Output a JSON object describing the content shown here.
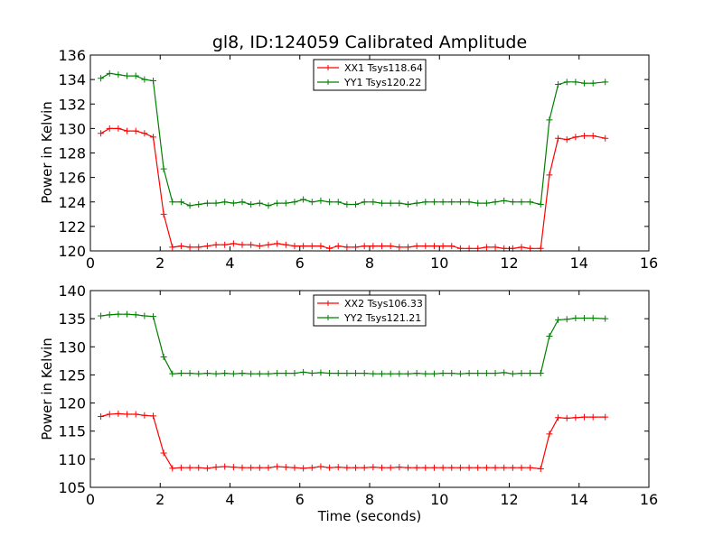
{
  "chart_data": [
    {
      "type": "line",
      "title": "gl8, ID:124059 Calibrated Amplitude",
      "xlabel": "",
      "ylabel": "Power in Kelvin",
      "xlim": [
        0,
        16
      ],
      "ylim": [
        120,
        136
      ],
      "xticks": [
        0,
        2,
        4,
        6,
        8,
        10,
        12,
        14,
        16
      ],
      "yticks": [
        120,
        122,
        124,
        126,
        128,
        130,
        132,
        134,
        136
      ],
      "grid": false,
      "legend_position": "top-center",
      "x": [
        0.3,
        0.55,
        0.8,
        1.05,
        1.3,
        1.55,
        1.8,
        2.1,
        2.35,
        2.6,
        2.85,
        3.1,
        3.35,
        3.6,
        3.85,
        4.1,
        4.35,
        4.6,
        4.85,
        5.1,
        5.35,
        5.6,
        5.85,
        6.1,
        6.35,
        6.6,
        6.85,
        7.1,
        7.35,
        7.6,
        7.85,
        8.1,
        8.35,
        8.6,
        8.85,
        9.1,
        9.35,
        9.6,
        9.85,
        10.1,
        10.35,
        10.6,
        10.85,
        11.1,
        11.35,
        11.6,
        11.85,
        12.1,
        12.35,
        12.6,
        12.9,
        13.15,
        13.4,
        13.65,
        13.9,
        14.15,
        14.4,
        14.75
      ],
      "series": [
        {
          "name": "YY1 Tsys120.22",
          "color": "#008000",
          "values": [
            134.1,
            134.5,
            134.4,
            134.3,
            134.3,
            134.0,
            133.9,
            126.7,
            124.0,
            124.0,
            123.7,
            123.8,
            123.9,
            123.9,
            124.0,
            123.9,
            124.0,
            123.8,
            123.9,
            123.7,
            123.9,
            123.9,
            124.0,
            124.2,
            124.0,
            124.1,
            124.0,
            124.0,
            123.8,
            123.8,
            124.0,
            124.0,
            123.9,
            123.9,
            123.9,
            123.8,
            123.9,
            124.0,
            124.0,
            124.0,
            124.0,
            124.0,
            124.0,
            123.9,
            123.9,
            124.0,
            124.1,
            124.0,
            124.0,
            124.0,
            123.8,
            130.7,
            133.6,
            133.8,
            133.8,
            133.7,
            133.7,
            133.8
          ]
        },
        {
          "name": "XX1 Tsys118.64",
          "color": "#ff0000",
          "values": [
            129.6,
            130.0,
            130.0,
            129.8,
            129.8,
            129.6,
            129.3,
            123.0,
            120.3,
            120.4,
            120.3,
            120.3,
            120.4,
            120.5,
            120.5,
            120.6,
            120.5,
            120.5,
            120.4,
            120.5,
            120.6,
            120.5,
            120.4,
            120.4,
            120.4,
            120.4,
            120.2,
            120.4,
            120.3,
            120.3,
            120.4,
            120.4,
            120.4,
            120.4,
            120.3,
            120.3,
            120.4,
            120.4,
            120.4,
            120.4,
            120.4,
            120.2,
            120.2,
            120.2,
            120.3,
            120.3,
            120.2,
            120.2,
            120.3,
            120.2,
            120.2,
            126.2,
            129.2,
            129.1,
            129.3,
            129.4,
            129.4,
            129.2
          ]
        }
      ]
    },
    {
      "type": "line",
      "title": "",
      "xlabel": "Time (seconds)",
      "ylabel": "Power in Kelvin",
      "xlim": [
        0,
        16
      ],
      "ylim": [
        105,
        140
      ],
      "xticks": [
        0,
        2,
        4,
        6,
        8,
        10,
        12,
        14,
        16
      ],
      "yticks": [
        105,
        110,
        115,
        120,
        125,
        130,
        135,
        140
      ],
      "grid": false,
      "legend_position": "top-center",
      "x": [
        0.3,
        0.55,
        0.8,
        1.05,
        1.3,
        1.55,
        1.8,
        2.1,
        2.35,
        2.6,
        2.85,
        3.1,
        3.35,
        3.6,
        3.85,
        4.1,
        4.35,
        4.6,
        4.85,
        5.1,
        5.35,
        5.6,
        5.85,
        6.1,
        6.35,
        6.6,
        6.85,
        7.1,
        7.35,
        7.6,
        7.85,
        8.1,
        8.35,
        8.6,
        8.85,
        9.1,
        9.35,
        9.6,
        9.85,
        10.1,
        10.35,
        10.6,
        10.85,
        11.1,
        11.35,
        11.6,
        11.85,
        12.1,
        12.35,
        12.6,
        12.9,
        13.15,
        13.4,
        13.65,
        13.9,
        14.15,
        14.4,
        14.75
      ],
      "series": [
        {
          "name": "YY2 Tsys121.21",
          "color": "#008000",
          "values": [
            135.5,
            135.7,
            135.8,
            135.8,
            135.7,
            135.5,
            135.4,
            128.2,
            125.2,
            125.3,
            125.3,
            125.2,
            125.3,
            125.2,
            125.3,
            125.2,
            125.3,
            125.2,
            125.2,
            125.2,
            125.3,
            125.3,
            125.3,
            125.5,
            125.3,
            125.4,
            125.3,
            125.3,
            125.3,
            125.3,
            125.3,
            125.2,
            125.2,
            125.2,
            125.2,
            125.2,
            125.3,
            125.2,
            125.2,
            125.3,
            125.3,
            125.2,
            125.3,
            125.3,
            125.3,
            125.3,
            125.4,
            125.2,
            125.3,
            125.3,
            125.3,
            131.9,
            134.8,
            134.9,
            135.1,
            135.1,
            135.1,
            135.0
          ]
        },
        {
          "name": "XX2 Tsys106.33",
          "color": "#ff0000",
          "values": [
            117.6,
            118.0,
            118.1,
            118.0,
            118.0,
            117.8,
            117.7,
            111.1,
            108.4,
            108.5,
            108.5,
            108.5,
            108.4,
            108.6,
            108.7,
            108.6,
            108.5,
            108.5,
            108.5,
            108.5,
            108.7,
            108.6,
            108.5,
            108.4,
            108.5,
            108.7,
            108.5,
            108.6,
            108.5,
            108.5,
            108.5,
            108.6,
            108.5,
            108.5,
            108.6,
            108.5,
            108.5,
            108.5,
            108.5,
            108.5,
            108.5,
            108.5,
            108.5,
            108.5,
            108.5,
            108.5,
            108.5,
            108.5,
            108.5,
            108.5,
            108.3,
            114.5,
            117.4,
            117.3,
            117.4,
            117.5,
            117.5,
            117.5
          ]
        }
      ]
    }
  ],
  "legends": [
    {
      "entries": [
        {
          "label": "XX1 Tsys118.64",
          "color": "#ff0000"
        },
        {
          "label": "YY1 Tsys120.22",
          "color": "#008000"
        }
      ]
    },
    {
      "entries": [
        {
          "label": "XX2 Tsys106.33",
          "color": "#ff0000"
        },
        {
          "label": "YY2 Tsys121.21",
          "color": "#008000"
        }
      ]
    }
  ]
}
